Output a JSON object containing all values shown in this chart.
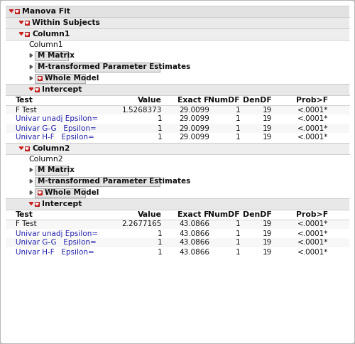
{
  "bg_color": "#f0f0f0",
  "panel_bg": "#ffffff",
  "header_bg_0": "#e8e8e8",
  "header_bg_1": "#eeeeee",
  "header_bg_2": "#f2f2f2",
  "intercept_bg": "#e8e8e8",
  "border_color": "#bbbbbb",
  "dark_border": "#999999",
  "text_black": "#000000",
  "text_blue": "#2222aa",
  "btn_bg": "#e8e8e8",
  "btn_border": "#aaaaaa",
  "table1": {
    "headers": [
      "Test",
      "Value",
      "Exact F",
      "NumDF",
      "DenDF",
      "Prob>F"
    ],
    "rows": [
      [
        "F Test",
        "1.5268373",
        "29.0099",
        "1",
        "19",
        "<.0001*"
      ],
      [
        "Univar unadj Epsilon=",
        "1",
        "29.0099",
        "1",
        "19",
        "<.0001*"
      ],
      [
        "Univar G-G   Epsilon=",
        "1",
        "29.0099",
        "1",
        "19",
        "<.0001*"
      ],
      [
        "Univar H-F   Epsilon=",
        "1",
        "29.0099",
        "1",
        "19",
        "<.0001*"
      ]
    ]
  },
  "table2": {
    "headers": [
      "Test",
      "Value",
      "Exact F",
      "NumDF",
      "DenDF",
      "Prob>F"
    ],
    "rows": [
      [
        "F Test",
        "2.2677165",
        "43.0866",
        "1",
        "19",
        "<.0001*"
      ],
      [
        "Univar unadj Epsilon=",
        "1",
        "43.0866",
        "1",
        "19",
        "<.0001*"
      ],
      [
        "Univar G-G   Epsilon=",
        "1",
        "43.0866",
        "1",
        "19",
        "<.0001*"
      ],
      [
        "Univar H-F   Epsilon=",
        "1",
        "43.0866",
        "1",
        "19",
        "<.0001*"
      ]
    ]
  }
}
